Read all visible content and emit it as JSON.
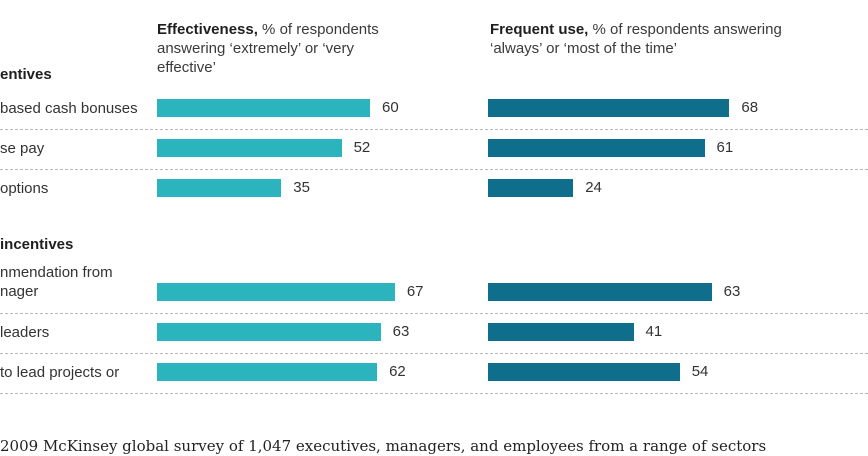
{
  "headers": {
    "effectiveness": {
      "bold": "Effectiveness,",
      "rest": " % of respondents answering ‘extremely’ or ‘very effective’"
    },
    "frequent_use": {
      "bold": "Frequent use,",
      "rest": " % of respondents answering ‘always’ or ‘most of the time’"
    }
  },
  "source": "2009 McKinsey global survey of 1,047 executives, managers, and employees from a range of sectors",
  "chart_data": {
    "type": "bar",
    "orientation": "horizontal",
    "groups": [
      "entives",
      "incentives"
    ],
    "categories": [
      "based cash bonuses",
      "se pay",
      "options",
      "nmendation from\nnager",
      "leaders",
      "to lead projects or"
    ],
    "category_group": [
      0,
      0,
      0,
      1,
      1,
      1
    ],
    "series": [
      {
        "name": "Effectiveness",
        "values": [
          60,
          52,
          35,
          67,
          63,
          62
        ],
        "color": "#2bb3be"
      },
      {
        "name": "Frequent use",
        "values": [
          68,
          61,
          24,
          63,
          41,
          54
        ],
        "color": "#0f6e8c"
      }
    ],
    "xlim": [
      0,
      100
    ],
    "grid": false
  }
}
